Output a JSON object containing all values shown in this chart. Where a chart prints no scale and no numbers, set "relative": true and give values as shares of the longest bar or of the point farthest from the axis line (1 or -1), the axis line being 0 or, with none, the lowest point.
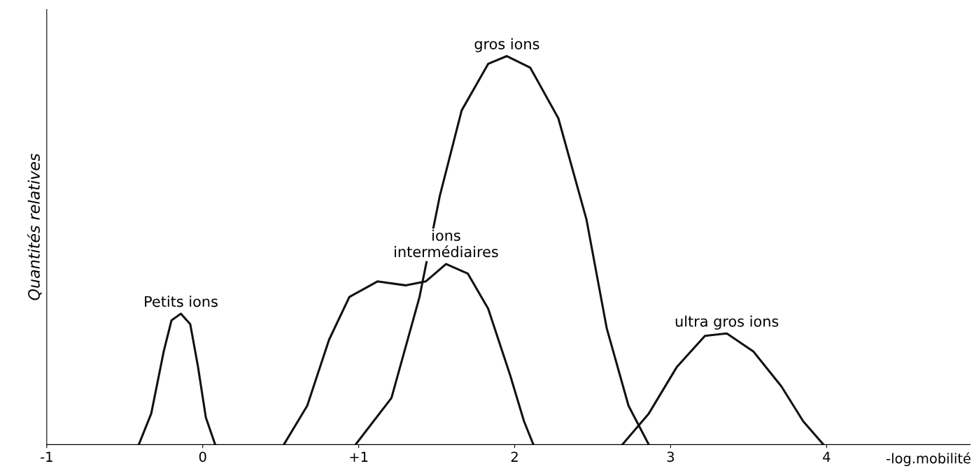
{
  "chart_data": {
    "type": "line",
    "relative": true,
    "xlabel": "-log.mobilité",
    "ylabel": "Quantités relatives",
    "xlim": [
      -1,
      4.92
    ],
    "xticks": [
      -1,
      0,
      {
        "value": 1,
        "label": "+1"
      },
      2,
      3,
      4
    ],
    "grid": false,
    "legend": false,
    "marker": "none",
    "line_style": "solid",
    "annotations": [
      {
        "text": "Petits ions",
        "x": -0.14,
        "y": 0.337
      },
      {
        "text": "ions\nintermédiaires",
        "x": 1.56,
        "y": 0.465
      },
      {
        "text": "gros ions",
        "x": 1.95,
        "y": 1.0
      },
      {
        "text": "ultra gros ions",
        "x": 3.36,
        "y": 0.286
      }
    ],
    "series": [
      {
        "color": "#111111",
        "x": [
          -0.41,
          -0.33,
          -0.25,
          -0.2,
          -0.14,
          -0.08,
          -0.03,
          0.02,
          0.08
        ],
        "values": [
          0,
          0.08,
          0.24,
          0.32,
          0.337,
          0.31,
          0.2,
          0.07,
          0
        ]
      },
      {
        "color": "#111111",
        "x": [
          0.52,
          0.67,
          0.81,
          0.94,
          1.12,
          1.3,
          1.43,
          1.56,
          1.7,
          1.83,
          1.97,
          2.06,
          2.12
        ],
        "values": [
          0,
          0.1,
          0.27,
          0.38,
          0.42,
          0.41,
          0.42,
          0.465,
          0.44,
          0.35,
          0.18,
          0.06,
          0
        ]
      },
      {
        "color": "#111111",
        "x": [
          0.98,
          1.21,
          1.39,
          1.52,
          1.66,
          1.83,
          1.95,
          2.1,
          2.28,
          2.46,
          2.59,
          2.73,
          2.86
        ],
        "values": [
          0,
          0.12,
          0.38,
          0.64,
          0.86,
          0.98,
          1.0,
          0.97,
          0.84,
          0.58,
          0.3,
          0.1,
          0
        ]
      },
      {
        "color": "#111111",
        "x": [
          2.69,
          2.86,
          3.04,
          3.22,
          3.36,
          3.53,
          3.71,
          3.85,
          3.98
        ],
        "values": [
          0,
          0.08,
          0.2,
          0.28,
          0.286,
          0.24,
          0.15,
          0.06,
          0
        ]
      }
    ]
  }
}
